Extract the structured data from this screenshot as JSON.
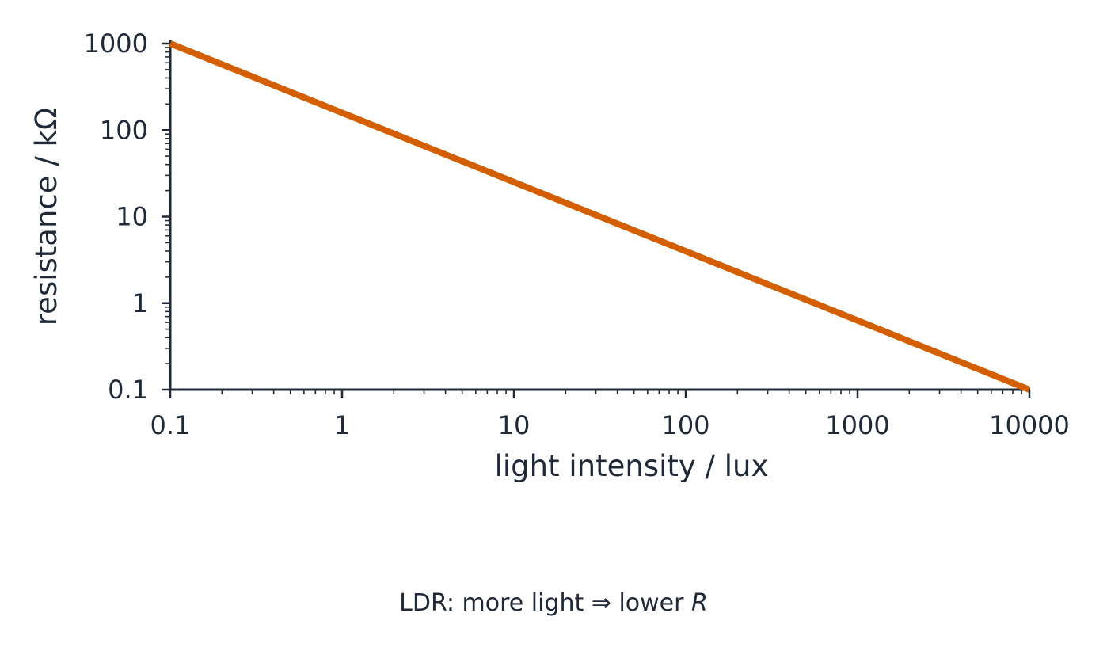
{
  "chart_data": {
    "type": "line",
    "title": "",
    "xlabel": "light intensity / lux",
    "ylabel": "resistance / kΩ",
    "xscale": "log",
    "yscale": "log",
    "xlim": [
      0.1,
      10000
    ],
    "ylim": [
      0.1,
      1000
    ],
    "xticks": [
      "0.1",
      "1",
      "10",
      "100",
      "1000",
      "10000"
    ],
    "yticks": [
      "0.1",
      "1",
      "10",
      "100",
      "1000"
    ],
    "grid": false,
    "legend": "none",
    "series": [
      {
        "color": "#d35f00",
        "x": [
          0.1,
          10000
        ],
        "y": [
          1000,
          0.1
        ]
      }
    ]
  },
  "caption": {
    "prefix": "LDR: more light ⇒ lower ",
    "symbol": "R"
  }
}
